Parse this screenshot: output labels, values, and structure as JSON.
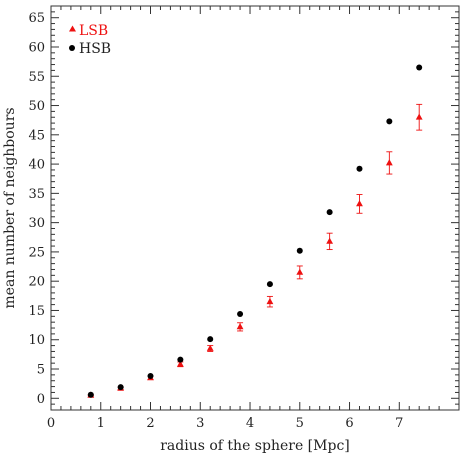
{
  "chart_data": {
    "type": "scatter",
    "xlabel": "radius of the sphere [Mpc]",
    "ylabel": "mean number of neighbours",
    "xlim": [
      0,
      8.2
    ],
    "ylim": [
      -2,
      67
    ],
    "xticks": [
      0,
      1,
      2,
      3,
      4,
      5,
      6,
      7
    ],
    "yticks": [
      0,
      5,
      10,
      15,
      20,
      25,
      30,
      35,
      40,
      45,
      50,
      55,
      60,
      65
    ],
    "legend_position": "top-left",
    "grid": false,
    "series": [
      {
        "name": "LSB",
        "color": "#ee1111",
        "marker": "triangle",
        "x": [
          0.8,
          1.4,
          2.0,
          2.6,
          3.2,
          3.8,
          4.4,
          5.0,
          5.6,
          6.2,
          6.8,
          7.4
        ],
        "y": [
          0.5,
          1.7,
          3.5,
          5.8,
          8.5,
          12.2,
          16.5,
          21.5,
          26.8,
          33.2,
          40.2,
          48.0
        ],
        "yerr": [
          0.1,
          0.2,
          0.3,
          0.4,
          0.5,
          0.7,
          0.9,
          1.1,
          1.4,
          1.6,
          1.9,
          2.2
        ]
      },
      {
        "name": "HSB",
        "color": "#000000",
        "marker": "circle",
        "x": [
          0.8,
          1.4,
          2.0,
          2.6,
          3.2,
          3.8,
          4.4,
          5.0,
          5.6,
          6.2,
          6.8,
          7.4
        ],
        "y": [
          0.6,
          1.9,
          3.8,
          6.6,
          10.1,
          14.4,
          19.5,
          25.2,
          31.8,
          39.2,
          47.3,
          56.5
        ]
      }
    ]
  }
}
